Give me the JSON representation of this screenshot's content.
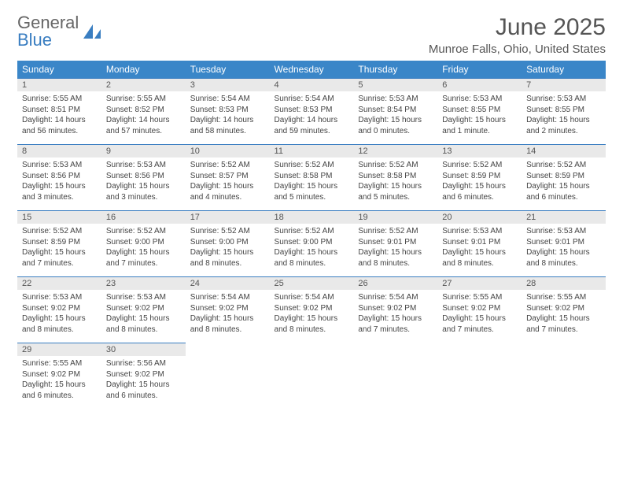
{
  "logo": {
    "top": "General",
    "bottom": "Blue"
  },
  "title": "June 2025",
  "location": "Munroe Falls, Ohio, United States",
  "columns": [
    "Sunday",
    "Monday",
    "Tuesday",
    "Wednesday",
    "Thursday",
    "Friday",
    "Saturday"
  ],
  "colors": {
    "header_bg": "#3a86c8",
    "header_fg": "#ffffff",
    "daynum_bg": "#e9e9e9",
    "rule": "#3a7ec1",
    "text": "#444444"
  },
  "weeks": [
    [
      {
        "n": "1",
        "sr": "5:55 AM",
        "ss": "8:51 PM",
        "dl": "14 hours and 56 minutes."
      },
      {
        "n": "2",
        "sr": "5:55 AM",
        "ss": "8:52 PM",
        "dl": "14 hours and 57 minutes."
      },
      {
        "n": "3",
        "sr": "5:54 AM",
        "ss": "8:53 PM",
        "dl": "14 hours and 58 minutes."
      },
      {
        "n": "4",
        "sr": "5:54 AM",
        "ss": "8:53 PM",
        "dl": "14 hours and 59 minutes."
      },
      {
        "n": "5",
        "sr": "5:53 AM",
        "ss": "8:54 PM",
        "dl": "15 hours and 0 minutes."
      },
      {
        "n": "6",
        "sr": "5:53 AM",
        "ss": "8:55 PM",
        "dl": "15 hours and 1 minute."
      },
      {
        "n": "7",
        "sr": "5:53 AM",
        "ss": "8:55 PM",
        "dl": "15 hours and 2 minutes."
      }
    ],
    [
      {
        "n": "8",
        "sr": "5:53 AM",
        "ss": "8:56 PM",
        "dl": "15 hours and 3 minutes."
      },
      {
        "n": "9",
        "sr": "5:53 AM",
        "ss": "8:56 PM",
        "dl": "15 hours and 3 minutes."
      },
      {
        "n": "10",
        "sr": "5:52 AM",
        "ss": "8:57 PM",
        "dl": "15 hours and 4 minutes."
      },
      {
        "n": "11",
        "sr": "5:52 AM",
        "ss": "8:58 PM",
        "dl": "15 hours and 5 minutes."
      },
      {
        "n": "12",
        "sr": "5:52 AM",
        "ss": "8:58 PM",
        "dl": "15 hours and 5 minutes."
      },
      {
        "n": "13",
        "sr": "5:52 AM",
        "ss": "8:59 PM",
        "dl": "15 hours and 6 minutes."
      },
      {
        "n": "14",
        "sr": "5:52 AM",
        "ss": "8:59 PM",
        "dl": "15 hours and 6 minutes."
      }
    ],
    [
      {
        "n": "15",
        "sr": "5:52 AM",
        "ss": "8:59 PM",
        "dl": "15 hours and 7 minutes."
      },
      {
        "n": "16",
        "sr": "5:52 AM",
        "ss": "9:00 PM",
        "dl": "15 hours and 7 minutes."
      },
      {
        "n": "17",
        "sr": "5:52 AM",
        "ss": "9:00 PM",
        "dl": "15 hours and 8 minutes."
      },
      {
        "n": "18",
        "sr": "5:52 AM",
        "ss": "9:00 PM",
        "dl": "15 hours and 8 minutes."
      },
      {
        "n": "19",
        "sr": "5:52 AM",
        "ss": "9:01 PM",
        "dl": "15 hours and 8 minutes."
      },
      {
        "n": "20",
        "sr": "5:53 AM",
        "ss": "9:01 PM",
        "dl": "15 hours and 8 minutes."
      },
      {
        "n": "21",
        "sr": "5:53 AM",
        "ss": "9:01 PM",
        "dl": "15 hours and 8 minutes."
      }
    ],
    [
      {
        "n": "22",
        "sr": "5:53 AM",
        "ss": "9:02 PM",
        "dl": "15 hours and 8 minutes."
      },
      {
        "n": "23",
        "sr": "5:53 AM",
        "ss": "9:02 PM",
        "dl": "15 hours and 8 minutes."
      },
      {
        "n": "24",
        "sr": "5:54 AM",
        "ss": "9:02 PM",
        "dl": "15 hours and 8 minutes."
      },
      {
        "n": "25",
        "sr": "5:54 AM",
        "ss": "9:02 PM",
        "dl": "15 hours and 8 minutes."
      },
      {
        "n": "26",
        "sr": "5:54 AM",
        "ss": "9:02 PM",
        "dl": "15 hours and 7 minutes."
      },
      {
        "n": "27",
        "sr": "5:55 AM",
        "ss": "9:02 PM",
        "dl": "15 hours and 7 minutes."
      },
      {
        "n": "28",
        "sr": "5:55 AM",
        "ss": "9:02 PM",
        "dl": "15 hours and 7 minutes."
      }
    ],
    [
      {
        "n": "29",
        "sr": "5:55 AM",
        "ss": "9:02 PM",
        "dl": "15 hours and 6 minutes."
      },
      {
        "n": "30",
        "sr": "5:56 AM",
        "ss": "9:02 PM",
        "dl": "15 hours and 6 minutes."
      },
      null,
      null,
      null,
      null,
      null
    ]
  ],
  "labels": {
    "sunrise": "Sunrise:",
    "sunset": "Sunset:",
    "daylight": "Daylight:"
  }
}
